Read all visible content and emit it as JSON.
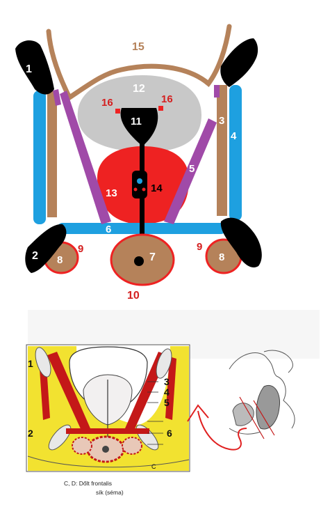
{
  "schema": {
    "labels": {
      "l1": "1",
      "l2": "2",
      "l3": "3",
      "l4": "4",
      "l5": "5",
      "l6": "6",
      "l7": "7",
      "l8a": "8",
      "l8b": "8",
      "l9a": "9",
      "l9b": "9",
      "l10": "10",
      "l11": "11",
      "l12": "12",
      "l13": "13",
      "l14": "14",
      "l15": "15",
      "l16a": "16",
      "l16b": "16"
    },
    "colors": {
      "bone": "#000000",
      "obturator": "#1ea0e0",
      "fascia": "#b5825a",
      "levator": "#a04aa8",
      "bladder": "#c8c8c8",
      "prostate": "#ee2222",
      "label_red": "#d42020",
      "label_tan": "#b5825a"
    }
  },
  "textbook": {
    "labels": {
      "n1": "1",
      "n2": "2",
      "n3": "3",
      "n4": "4",
      "n5": "5",
      "n6": "6",
      "c": "C"
    },
    "caption_line1": "C, D:  Dőlt frontalis",
    "caption_line2": "sík (séma)"
  }
}
